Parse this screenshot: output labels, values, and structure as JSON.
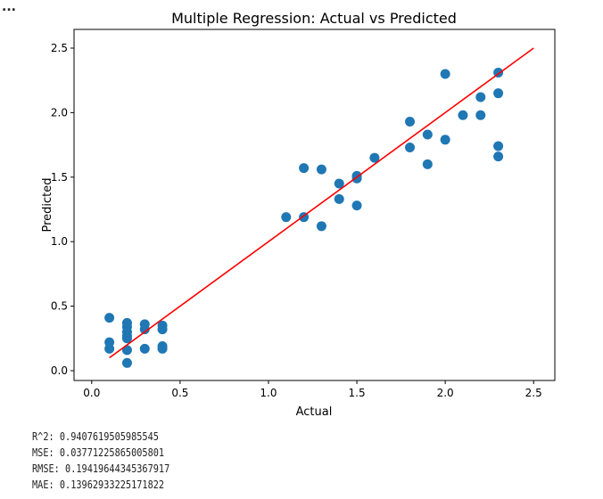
{
  "ellipsis": "...",
  "chart_data": {
    "type": "scatter",
    "title": "Multiple Regression: Actual vs Predicted",
    "xlabel": "Actual",
    "ylabel": "Predicted",
    "xlim": [
      -0.1,
      2.62
    ],
    "ylim": [
      -0.076,
      2.645
    ],
    "xticks": [
      "0.0",
      "0.5",
      "1.0",
      "1.5",
      "2.0",
      "2.5"
    ],
    "yticks": [
      "0.0",
      "0.5",
      "1.0",
      "1.5",
      "2.0",
      "2.5"
    ],
    "grid": false,
    "point_color": "#1f77b4",
    "line_color": "#ff0000",
    "points": [
      [
        0.1,
        0.41
      ],
      [
        0.1,
        0.22
      ],
      [
        0.1,
        0.17
      ],
      [
        0.2,
        0.37
      ],
      [
        0.2,
        0.34
      ],
      [
        0.2,
        0.3
      ],
      [
        0.2,
        0.27
      ],
      [
        0.2,
        0.25
      ],
      [
        0.2,
        0.16
      ],
      [
        0.2,
        0.06
      ],
      [
        0.3,
        0.36
      ],
      [
        0.3,
        0.32
      ],
      [
        0.3,
        0.17
      ],
      [
        0.4,
        0.35
      ],
      [
        0.4,
        0.32
      ],
      [
        0.4,
        0.19
      ],
      [
        0.4,
        0.17
      ],
      [
        1.1,
        1.19
      ],
      [
        1.2,
        1.57
      ],
      [
        1.2,
        1.19
      ],
      [
        1.3,
        1.56
      ],
      [
        1.3,
        1.12
      ],
      [
        1.4,
        1.45
      ],
      [
        1.4,
        1.33
      ],
      [
        1.5,
        1.51
      ],
      [
        1.5,
        1.49
      ],
      [
        1.5,
        1.28
      ],
      [
        1.6,
        1.65
      ],
      [
        1.8,
        1.93
      ],
      [
        1.8,
        1.73
      ],
      [
        1.9,
        1.83
      ],
      [
        1.9,
        1.6
      ],
      [
        2.0,
        2.3
      ],
      [
        2.0,
        1.79
      ],
      [
        2.1,
        1.98
      ],
      [
        2.2,
        2.12
      ],
      [
        2.2,
        1.98
      ],
      [
        2.3,
        2.31
      ],
      [
        2.3,
        2.15
      ],
      [
        2.3,
        1.74
      ],
      [
        2.3,
        1.66
      ]
    ],
    "reference_line": [
      [
        0.1,
        0.1
      ],
      [
        2.5,
        2.5
      ]
    ]
  },
  "stats": [
    "R^2: 0.9407619505985545",
    "MSE: 0.03771225865005801",
    "RMSE: 0.19419644345367917",
    "MAE: 0.13962933225171822"
  ]
}
